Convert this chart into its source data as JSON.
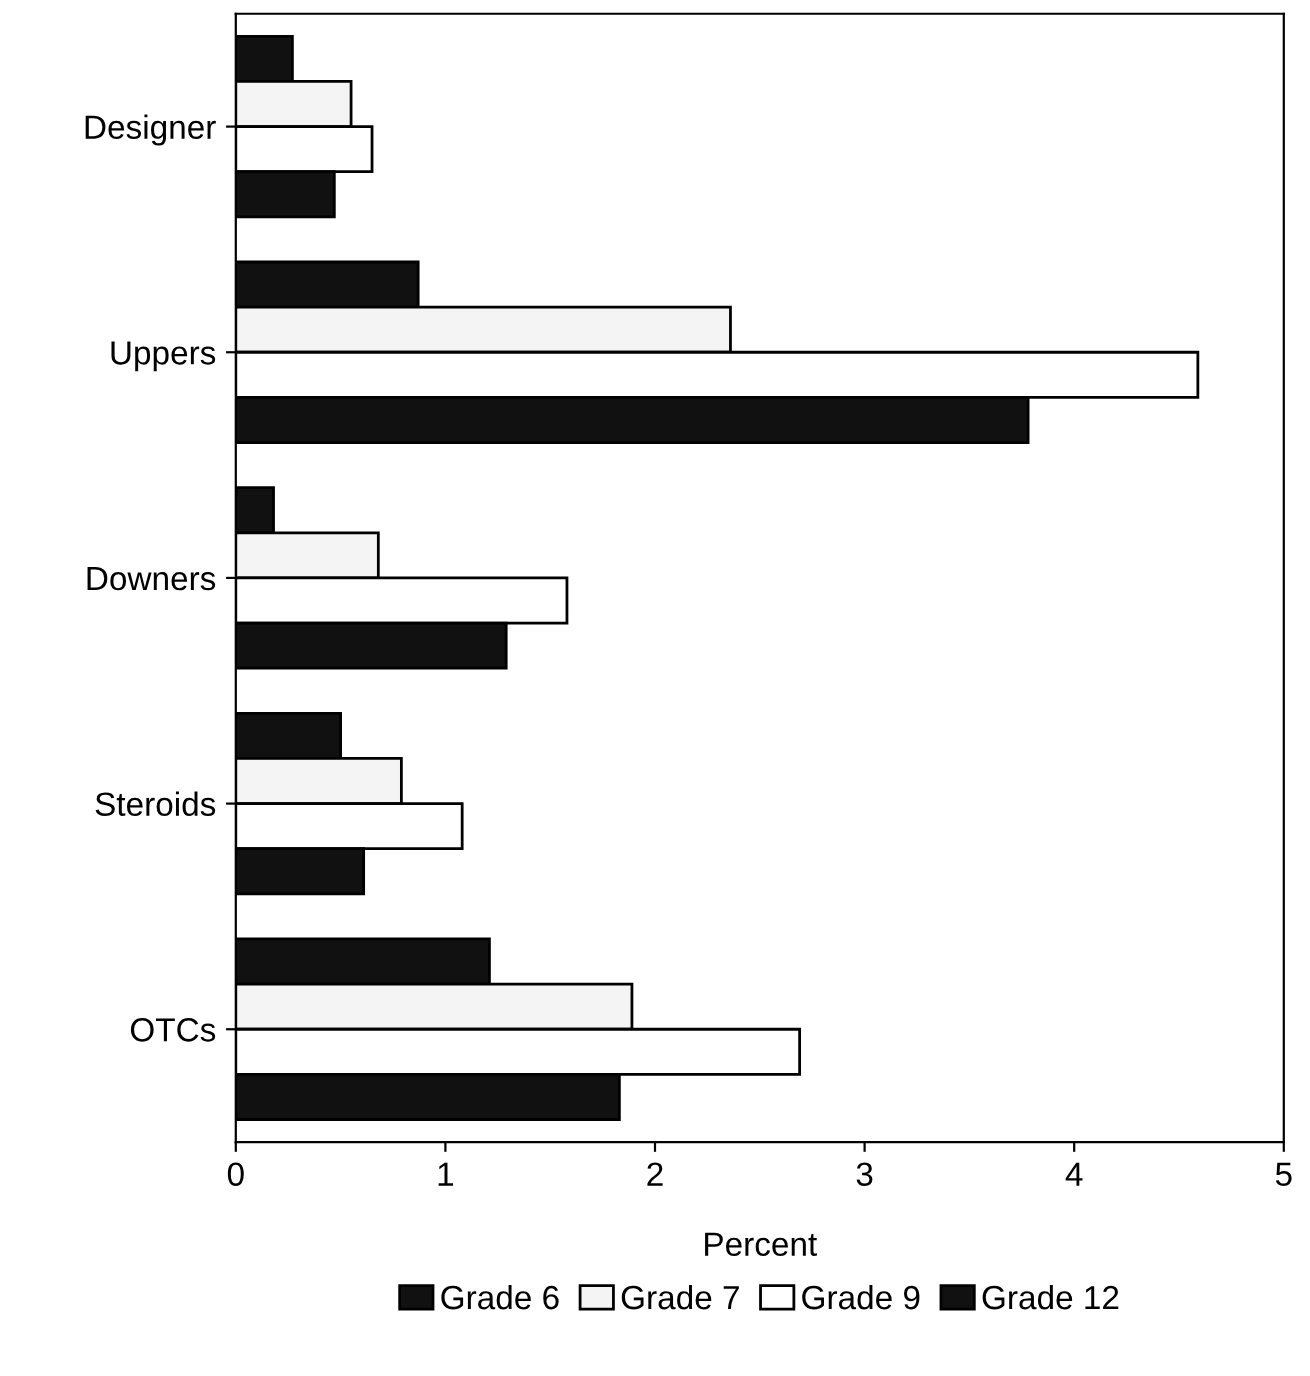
{
  "chart_data": {
    "type": "bar",
    "orientation": "horizontal",
    "xlabel": "Percent",
    "categories": [
      "Designer",
      "Uppers",
      "Downers",
      "Steroids",
      "OTCs"
    ],
    "series": [
      {
        "name": "Grade 6",
        "color": "#111111",
        "values": [
          0.27,
          0.87,
          0.18,
          0.5,
          1.21
        ]
      },
      {
        "name": "Grade 7",
        "color": "#f4f4f4",
        "values": [
          0.55,
          2.36,
          0.68,
          0.79,
          1.89
        ]
      },
      {
        "name": "Grade 9",
        "color": "#ffffff",
        "values": [
          0.65,
          4.59,
          1.58,
          1.08,
          2.69
        ]
      },
      {
        "name": "Grade 12",
        "color": "#111111",
        "values": [
          0.47,
          3.78,
          1.29,
          0.61,
          1.83
        ]
      }
    ],
    "xlim": [
      0,
      5
    ],
    "xticks": [
      0,
      1,
      2,
      3,
      4,
      5
    ],
    "grid": false,
    "legend": "bottom"
  }
}
